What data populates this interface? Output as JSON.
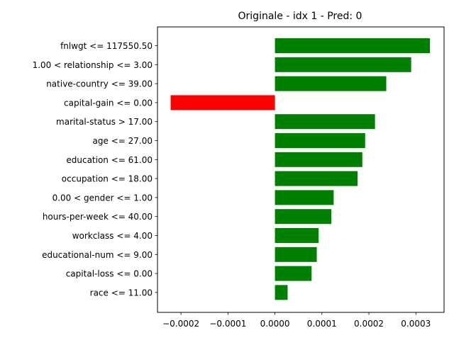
{
  "chart_data": {
    "type": "bar",
    "orientation": "horizontal",
    "title": "Originale - idx 1 - Pred: 0",
    "xlabel": "",
    "ylabel": "",
    "xlim": [
      -0.00025,
      0.00036
    ],
    "xticks": [
      -0.0002,
      -0.0001,
      0.0,
      0.0001,
      0.0002,
      0.0003
    ],
    "xtick_labels": [
      "−0.0002",
      "−0.0001",
      "0.0000",
      "0.0001",
      "0.0002",
      "0.0003"
    ],
    "grid": false,
    "positive_color": "#008000",
    "negative_color": "#ff0000",
    "categories": [
      "fnlwgt <= 117550.50",
      "1.00 < relationship <= 3.00",
      "native-country <= 39.00",
      "capital-gain <= 0.00",
      "marital-status > 17.00",
      "age <= 27.00",
      "education <= 61.00",
      "occupation <= 18.00",
      "0.00 < gender <= 1.00",
      "hours-per-week <= 40.00",
      "workclass <= 4.00",
      "educational-num <= 9.00",
      "capital-loss <= 0.00",
      "race <= 11.00"
    ],
    "values": [
      0.00033,
      0.00029,
      0.000237,
      -0.000222,
      0.000213,
      0.000192,
      0.000186,
      0.000176,
      0.000125,
      0.00012,
      9.3e-05,
      8.9e-05,
      7.8e-05,
      2.7e-05
    ]
  }
}
